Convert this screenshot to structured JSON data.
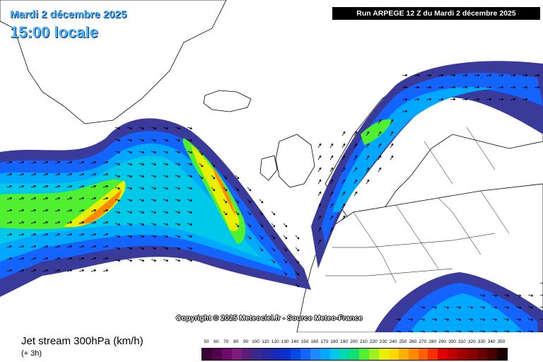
{
  "header": {
    "date": "Mardi 2 décembre 2025",
    "local_time": "15:00 locale",
    "run": "Run ARPEGE 12 Z du Mardi 2 décembre 2025"
  },
  "copyright": "Copyright © 2025 Meteociel.fr - Source Meteo-France",
  "footer": {
    "product": "Jet stream 300hPa (km/h)",
    "step": "(+ 3h)"
  },
  "legend": {
    "labels": [
      "50",
      "60",
      "70",
      "80",
      "90",
      "100",
      "110",
      "120",
      "130",
      "140",
      "150",
      "160",
      "170",
      "180",
      "190",
      "200",
      "210",
      "220",
      "230",
      "240",
      "250",
      "260",
      "270",
      "280",
      "290",
      "300",
      "310",
      "320",
      "330",
      "340",
      "350"
    ],
    "colors": [
      "#3d0036",
      "#560050",
      "#6e0a6a",
      "#801a80",
      "#5a1e7a",
      "#3a2a8a",
      "#2a2aa0",
      "#1a2ab8",
      "#0a30d0",
      "#0048e8",
      "#1464ff",
      "#1e88ff",
      "#00a8ff",
      "#00c8e8",
      "#00d8b0",
      "#10e070",
      "#50f030",
      "#a0f020",
      "#e8f000",
      "#ffd800",
      "#ffb000",
      "#ff8a00",
      "#ff6000",
      "#f83000",
      "#e00000",
      "#c00000",
      "#a00000",
      "#880000",
      "#6a0000",
      "#4a0000",
      "#1a0000"
    ]
  },
  "map": {
    "land_color": "#ffffff",
    "coast_color": "#000000",
    "jet_colors": {
      "weak": "#3a3a9a",
      "mid_blue": "#1464ff",
      "light_blue": "#00a8ff",
      "cyan": "#00c8e8",
      "green": "#50f030",
      "yellow": "#e8f000",
      "orange": "#ff8a00",
      "red": "#e00000"
    }
  }
}
